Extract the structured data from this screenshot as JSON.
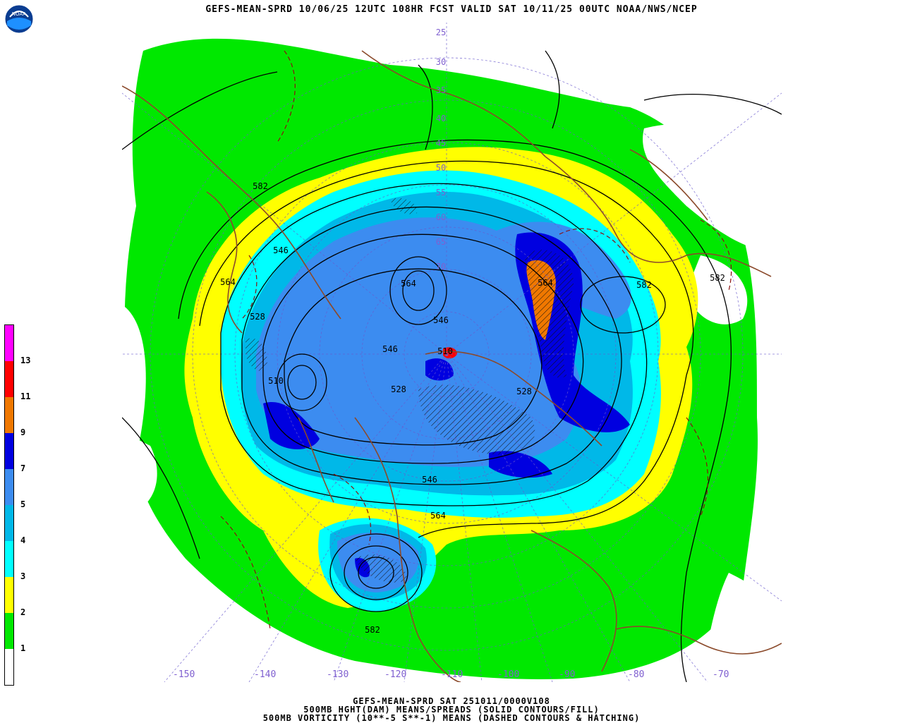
{
  "title": "GEFS-MEAN-SPRD 10/06/25 12UTC 108HR FCST VALID SAT 10/11/25 00UTC NOAA/NWS/NCEP",
  "logo": {
    "icon": "noaa-logo",
    "text": "NOAA"
  },
  "footer": {
    "line1": "GEFS-MEAN-SPRD SAT 251011/0000V108",
    "line2": "500MB HGHT(DAM) MEANS/SPREADS (SOLID CONTOURS/FILL)",
    "line3": "500MB VORTICITY (10**-5 S**-1) MEANS (DASHED CONTOURS & HATCHING)"
  },
  "legend": {
    "levels": [
      {
        "label": "",
        "color": "#ffffff"
      },
      {
        "label": "1",
        "color": "#00e800"
      },
      {
        "label": "2",
        "color": "#ffff00"
      },
      {
        "label": "3",
        "color": "#00ffff"
      },
      {
        "label": "4",
        "color": "#00b8e8"
      },
      {
        "label": "5",
        "color": "#3c8cf0"
      },
      {
        "label": "7",
        "color": "#0000e0"
      },
      {
        "label": "9",
        "color": "#f07800"
      },
      {
        "label": "11",
        "color": "#ff0000"
      },
      {
        "label": "13",
        "color": "#ff00ff"
      }
    ]
  },
  "longitudes": [
    "-150",
    "-140",
    "-130",
    "-120",
    "-110",
    "-100",
    "-90",
    "-80",
    "-70"
  ],
  "latitudes": [
    "25",
    "30",
    "35",
    "40",
    "45",
    "50",
    "55",
    "60",
    "65",
    "70"
  ],
  "contours": [
    {
      "label": "582"
    },
    {
      "label": "564"
    },
    {
      "label": "546"
    },
    {
      "label": "528"
    },
    {
      "label": "510"
    },
    {
      "label": "564"
    },
    {
      "label": "546"
    },
    {
      "label": "546"
    },
    {
      "label": "528"
    },
    {
      "label": "528"
    },
    {
      "label": "564"
    },
    {
      "label": "582"
    },
    {
      "label": "582"
    },
    {
      "label": "546"
    },
    {
      "label": "564"
    },
    {
      "label": "582"
    },
    {
      "label": "510"
    }
  ],
  "colors": {
    "background": "#ffffff",
    "lon_label": "#7f5fd0",
    "coastline": "#8b4a2b",
    "contour": "#000000",
    "vorticity": "#8b1010",
    "grid": "#6a5acd"
  }
}
